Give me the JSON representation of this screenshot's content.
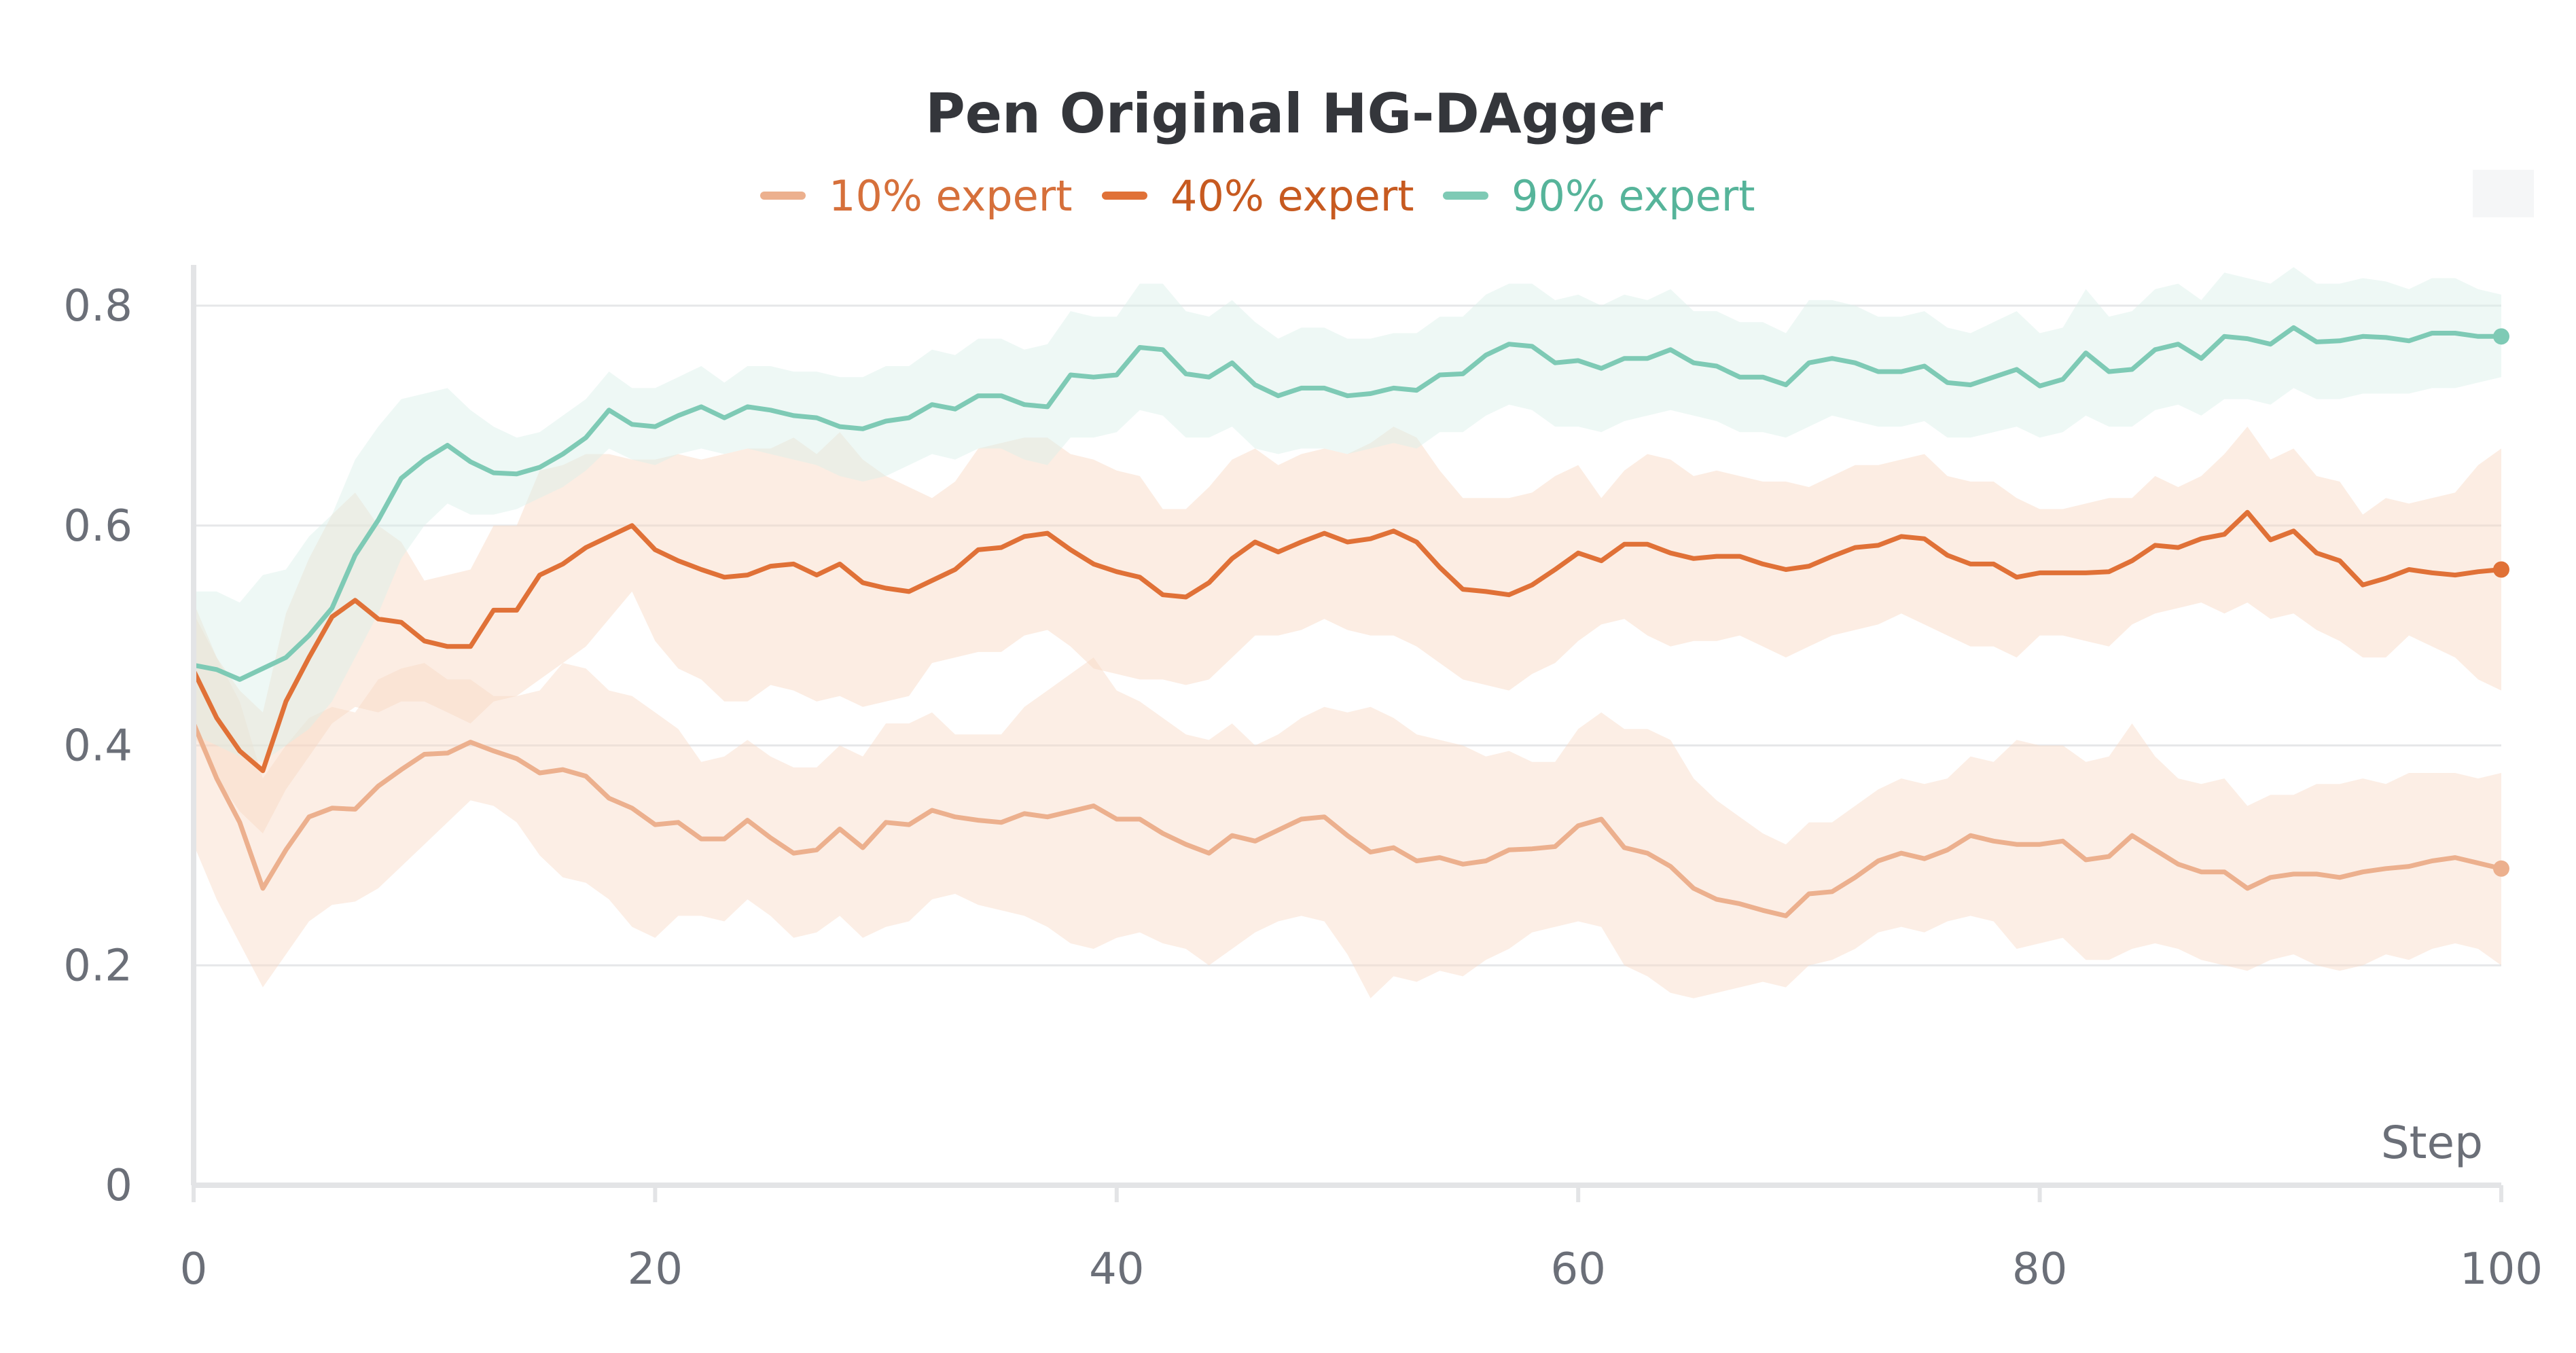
{
  "chart_data": {
    "type": "line",
    "title": "Pen Original HG-DAgger",
    "xlabel": "Step",
    "ylabel": "",
    "xlim": [
      0,
      100
    ],
    "ylim": [
      0,
      0.8
    ],
    "x_ticks": [
      "0",
      "20",
      "40",
      "60",
      "80",
      "100"
    ],
    "y_ticks": [
      "0",
      "0.2",
      "0.4",
      "0.6",
      "0.8"
    ],
    "grid": true,
    "legend_position": "top-center",
    "x": [
      0,
      1,
      2,
      3,
      4,
      5,
      6,
      7,
      8,
      9,
      10,
      11,
      12,
      13,
      14,
      15,
      16,
      17,
      18,
      19,
      20,
      21,
      22,
      23,
      24,
      25,
      26,
      27,
      28,
      29,
      30,
      31,
      32,
      33,
      34,
      35,
      36,
      37,
      38,
      39,
      40,
      41,
      42,
      43,
      44,
      45,
      46,
      47,
      48,
      49,
      50,
      51,
      52,
      53,
      54,
      55,
      56,
      57,
      58,
      59,
      60,
      61,
      62,
      63,
      64,
      65,
      66,
      67,
      68,
      69,
      70,
      71,
      72,
      73,
      74,
      75,
      76,
      77,
      78,
      79,
      80,
      81,
      82,
      83,
      84,
      85,
      86,
      87,
      88,
      89,
      90,
      91,
      92,
      93,
      94,
      95,
      96,
      97,
      98,
      99,
      100
    ],
    "series": [
      {
        "name": "10% expert",
        "color": "#ecb08e",
        "band_color": "#f8d9c6",
        "values": [
          0.42,
          0.37,
          0.33,
          0.27,
          0.305,
          0.335,
          0.343,
          0.342,
          0.363,
          0.378,
          0.392,
          0.393,
          0.403,
          0.395,
          0.388,
          0.375,
          0.378,
          0.372,
          0.352,
          0.343,
          0.328,
          0.33,
          0.315,
          0.315,
          0.332,
          0.316,
          0.302,
          0.305,
          0.324,
          0.307,
          0.33,
          0.328,
          0.341,
          0.335,
          0.332,
          0.33,
          0.338,
          0.335,
          0.34,
          0.345,
          0.333,
          0.333,
          0.32,
          0.31,
          0.302,
          0.318,
          0.313,
          0.323,
          0.333,
          0.335,
          0.318,
          0.303,
          0.307,
          0.295,
          0.298,
          0.292,
          0.295,
          0.305,
          0.306,
          0.308,
          0.327,
          0.333,
          0.307,
          0.302,
          0.29,
          0.27,
          0.26,
          0.256,
          0.25,
          0.245,
          0.265,
          0.267,
          0.28,
          0.295,
          0.302,
          0.297,
          0.305,
          0.318,
          0.313,
          0.31,
          0.31,
          0.313,
          0.296,
          0.299,
          0.318,
          0.305,
          0.292,
          0.285,
          0.285,
          0.27,
          0.28,
          0.283,
          0.283,
          0.28,
          0.285,
          0.288,
          0.29,
          0.295,
          0.298,
          0.293,
          0.288
        ],
        "band_low": [
          0.31,
          0.26,
          0.22,
          0.18,
          0.21,
          0.24,
          0.255,
          0.258,
          0.27,
          0.29,
          0.31,
          0.33,
          0.35,
          0.345,
          0.33,
          0.3,
          0.28,
          0.275,
          0.26,
          0.235,
          0.225,
          0.245,
          0.245,
          0.24,
          0.26,
          0.245,
          0.225,
          0.23,
          0.245,
          0.225,
          0.235,
          0.24,
          0.26,
          0.265,
          0.255,
          0.25,
          0.245,
          0.235,
          0.22,
          0.215,
          0.225,
          0.23,
          0.22,
          0.215,
          0.2,
          0.215,
          0.23,
          0.24,
          0.245,
          0.24,
          0.21,
          0.17,
          0.19,
          0.185,
          0.195,
          0.19,
          0.205,
          0.215,
          0.23,
          0.235,
          0.24,
          0.235,
          0.2,
          0.19,
          0.175,
          0.17,
          0.175,
          0.18,
          0.185,
          0.18,
          0.2,
          0.205,
          0.215,
          0.23,
          0.235,
          0.23,
          0.24,
          0.245,
          0.24,
          0.215,
          0.22,
          0.225,
          0.205,
          0.205,
          0.215,
          0.22,
          0.215,
          0.205,
          0.2,
          0.195,
          0.205,
          0.21,
          0.2,
          0.195,
          0.2,
          0.21,
          0.205,
          0.215,
          0.22,
          0.215,
          0.2
        ],
        "band_high": [
          0.53,
          0.48,
          0.44,
          0.37,
          0.4,
          0.425,
          0.435,
          0.43,
          0.46,
          0.47,
          0.475,
          0.46,
          0.46,
          0.445,
          0.445,
          0.45,
          0.475,
          0.47,
          0.45,
          0.445,
          0.43,
          0.415,
          0.385,
          0.39,
          0.405,
          0.39,
          0.38,
          0.38,
          0.4,
          0.39,
          0.42,
          0.42,
          0.43,
          0.41,
          0.41,
          0.41,
          0.435,
          0.45,
          0.465,
          0.48,
          0.45,
          0.44,
          0.425,
          0.41,
          0.405,
          0.42,
          0.4,
          0.41,
          0.425,
          0.435,
          0.43,
          0.435,
          0.425,
          0.41,
          0.405,
          0.4,
          0.39,
          0.395,
          0.385,
          0.385,
          0.415,
          0.43,
          0.415,
          0.415,
          0.405,
          0.37,
          0.35,
          0.335,
          0.32,
          0.31,
          0.33,
          0.33,
          0.345,
          0.36,
          0.37,
          0.365,
          0.37,
          0.39,
          0.385,
          0.405,
          0.4,
          0.4,
          0.385,
          0.39,
          0.42,
          0.39,
          0.37,
          0.365,
          0.37,
          0.345,
          0.355,
          0.355,
          0.365,
          0.365,
          0.37,
          0.365,
          0.375,
          0.375,
          0.375,
          0.37,
          0.375
        ]
      },
      {
        "name": "40% expert",
        "color": "#e07137",
        "band_color": "#f9d6c1",
        "values": [
          0.468,
          0.425,
          0.395,
          0.377,
          0.44,
          0.48,
          0.517,
          0.532,
          0.515,
          0.512,
          0.495,
          0.49,
          0.49,
          0.523,
          0.523,
          0.555,
          0.565,
          0.58,
          0.59,
          0.6,
          0.578,
          0.568,
          0.56,
          0.553,
          0.555,
          0.563,
          0.565,
          0.555,
          0.565,
          0.548,
          0.543,
          0.54,
          0.55,
          0.56,
          0.578,
          0.58,
          0.59,
          0.593,
          0.578,
          0.565,
          0.558,
          0.553,
          0.537,
          0.535,
          0.548,
          0.57,
          0.585,
          0.576,
          0.585,
          0.593,
          0.585,
          0.588,
          0.595,
          0.585,
          0.562,
          0.542,
          0.54,
          0.537,
          0.546,
          0.56,
          0.575,
          0.568,
          0.583,
          0.583,
          0.575,
          0.57,
          0.572,
          0.572,
          0.565,
          0.56,
          0.563,
          0.572,
          0.58,
          0.582,
          0.59,
          0.588,
          0.573,
          0.565,
          0.565,
          0.553,
          0.557,
          0.557,
          0.557,
          0.558,
          0.568,
          0.582,
          0.58,
          0.588,
          0.592,
          0.612,
          0.587,
          0.595,
          0.575,
          0.568,
          0.546,
          0.552,
          0.56,
          0.557,
          0.555,
          0.558,
          0.56
        ],
        "band_low": [
          0.41,
          0.37,
          0.34,
          0.32,
          0.36,
          0.39,
          0.42,
          0.435,
          0.43,
          0.44,
          0.44,
          0.43,
          0.42,
          0.44,
          0.445,
          0.46,
          0.475,
          0.49,
          0.515,
          0.54,
          0.495,
          0.47,
          0.46,
          0.44,
          0.44,
          0.455,
          0.45,
          0.44,
          0.445,
          0.435,
          0.44,
          0.445,
          0.475,
          0.48,
          0.485,
          0.485,
          0.5,
          0.505,
          0.49,
          0.47,
          0.465,
          0.46,
          0.46,
          0.455,
          0.46,
          0.48,
          0.5,
          0.5,
          0.505,
          0.515,
          0.505,
          0.5,
          0.5,
          0.49,
          0.475,
          0.46,
          0.455,
          0.45,
          0.465,
          0.475,
          0.495,
          0.51,
          0.515,
          0.5,
          0.49,
          0.495,
          0.495,
          0.5,
          0.49,
          0.48,
          0.49,
          0.5,
          0.505,
          0.51,
          0.52,
          0.51,
          0.5,
          0.49,
          0.49,
          0.48,
          0.5,
          0.5,
          0.495,
          0.49,
          0.51,
          0.52,
          0.525,
          0.53,
          0.52,
          0.53,
          0.515,
          0.52,
          0.505,
          0.495,
          0.48,
          0.48,
          0.5,
          0.49,
          0.48,
          0.46,
          0.45
        ],
        "band_high": [
          0.52,
          0.48,
          0.45,
          0.43,
          0.52,
          0.57,
          0.61,
          0.63,
          0.6,
          0.585,
          0.55,
          0.555,
          0.56,
          0.6,
          0.6,
          0.65,
          0.655,
          0.665,
          0.665,
          0.66,
          0.66,
          0.665,
          0.66,
          0.665,
          0.67,
          0.67,
          0.68,
          0.665,
          0.685,
          0.66,
          0.645,
          0.635,
          0.625,
          0.64,
          0.67,
          0.675,
          0.68,
          0.68,
          0.665,
          0.66,
          0.65,
          0.645,
          0.615,
          0.615,
          0.635,
          0.66,
          0.67,
          0.655,
          0.665,
          0.67,
          0.665,
          0.675,
          0.69,
          0.68,
          0.65,
          0.625,
          0.625,
          0.625,
          0.63,
          0.645,
          0.655,
          0.625,
          0.65,
          0.665,
          0.66,
          0.645,
          0.65,
          0.645,
          0.64,
          0.64,
          0.635,
          0.645,
          0.655,
          0.655,
          0.66,
          0.665,
          0.645,
          0.64,
          0.64,
          0.625,
          0.615,
          0.615,
          0.62,
          0.625,
          0.625,
          0.645,
          0.635,
          0.645,
          0.665,
          0.69,
          0.66,
          0.67,
          0.645,
          0.64,
          0.61,
          0.625,
          0.62,
          0.625,
          0.63,
          0.655,
          0.67
        ]
      },
      {
        "name": "90% expert",
        "color": "#7ecab5",
        "band_color": "#d9efe8",
        "values": [
          0.473,
          0.469,
          0.46,
          0.47,
          0.48,
          0.5,
          0.525,
          0.573,
          0.605,
          0.643,
          0.66,
          0.673,
          0.658,
          0.648,
          0.647,
          0.653,
          0.665,
          0.68,
          0.705,
          0.692,
          0.69,
          0.7,
          0.708,
          0.698,
          0.708,
          0.705,
          0.7,
          0.698,
          0.69,
          0.688,
          0.695,
          0.698,
          0.71,
          0.706,
          0.718,
          0.718,
          0.71,
          0.708,
          0.737,
          0.735,
          0.737,
          0.762,
          0.76,
          0.738,
          0.735,
          0.748,
          0.728,
          0.718,
          0.725,
          0.725,
          0.718,
          0.72,
          0.725,
          0.723,
          0.737,
          0.738,
          0.755,
          0.765,
          0.763,
          0.748,
          0.75,
          0.743,
          0.752,
          0.752,
          0.76,
          0.748,
          0.745,
          0.735,
          0.735,
          0.728,
          0.748,
          0.752,
          0.748,
          0.74,
          0.74,
          0.745,
          0.73,
          0.728,
          0.735,
          0.742,
          0.727,
          0.733,
          0.757,
          0.74,
          0.742,
          0.76,
          0.765,
          0.752,
          0.772,
          0.77,
          0.765,
          0.78,
          0.767,
          0.768,
          0.772,
          0.771,
          0.768,
          0.775,
          0.775,
          0.772,
          0.772
        ],
        "band_low": [
          0.41,
          0.4,
          0.39,
          0.385,
          0.4,
          0.415,
          0.44,
          0.48,
          0.52,
          0.57,
          0.6,
          0.62,
          0.61,
          0.61,
          0.615,
          0.625,
          0.635,
          0.65,
          0.67,
          0.66,
          0.655,
          0.665,
          0.67,
          0.665,
          0.67,
          0.665,
          0.66,
          0.655,
          0.645,
          0.64,
          0.645,
          0.655,
          0.665,
          0.66,
          0.67,
          0.67,
          0.66,
          0.655,
          0.68,
          0.68,
          0.685,
          0.705,
          0.7,
          0.68,
          0.68,
          0.69,
          0.67,
          0.665,
          0.67,
          0.67,
          0.665,
          0.67,
          0.675,
          0.67,
          0.685,
          0.685,
          0.7,
          0.71,
          0.705,
          0.69,
          0.69,
          0.685,
          0.695,
          0.7,
          0.705,
          0.7,
          0.695,
          0.685,
          0.685,
          0.68,
          0.69,
          0.7,
          0.695,
          0.69,
          0.69,
          0.695,
          0.68,
          0.68,
          0.685,
          0.69,
          0.68,
          0.685,
          0.7,
          0.69,
          0.69,
          0.705,
          0.71,
          0.7,
          0.715,
          0.715,
          0.71,
          0.725,
          0.715,
          0.715,
          0.72,
          0.72,
          0.72,
          0.725,
          0.725,
          0.73,
          0.735
        ],
        "band_high": [
          0.54,
          0.54,
          0.53,
          0.555,
          0.56,
          0.59,
          0.61,
          0.66,
          0.69,
          0.715,
          0.72,
          0.725,
          0.705,
          0.69,
          0.68,
          0.685,
          0.7,
          0.715,
          0.74,
          0.725,
          0.725,
          0.735,
          0.745,
          0.73,
          0.745,
          0.745,
          0.74,
          0.74,
          0.735,
          0.735,
          0.745,
          0.745,
          0.76,
          0.755,
          0.77,
          0.77,
          0.76,
          0.765,
          0.795,
          0.79,
          0.79,
          0.82,
          0.82,
          0.795,
          0.79,
          0.805,
          0.785,
          0.77,
          0.78,
          0.78,
          0.77,
          0.77,
          0.775,
          0.775,
          0.79,
          0.79,
          0.81,
          0.82,
          0.82,
          0.805,
          0.81,
          0.8,
          0.81,
          0.805,
          0.815,
          0.795,
          0.795,
          0.785,
          0.785,
          0.775,
          0.805,
          0.805,
          0.8,
          0.79,
          0.79,
          0.795,
          0.78,
          0.775,
          0.785,
          0.795,
          0.775,
          0.78,
          0.815,
          0.79,
          0.795,
          0.815,
          0.82,
          0.805,
          0.83,
          0.825,
          0.82,
          0.835,
          0.82,
          0.82,
          0.825,
          0.822,
          0.815,
          0.825,
          0.825,
          0.815,
          0.81
        ]
      }
    ]
  }
}
